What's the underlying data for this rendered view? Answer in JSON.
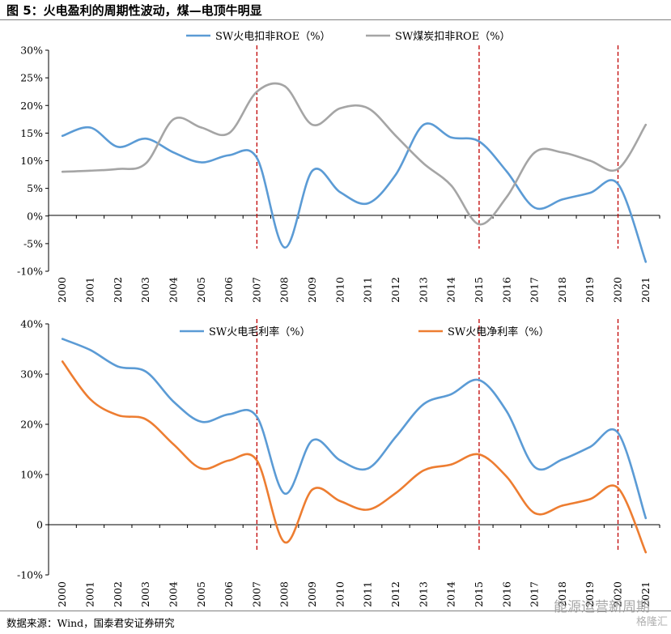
{
  "title": "图 5：火电盈利的周期性波动，煤—电顶牛明显",
  "source": "数据来源：Wind，国泰君安证券研究",
  "watermark": "能源运营新周期",
  "watermark_sub": "格隆汇",
  "chart_data": [
    {
      "type": "line",
      "x": [
        "2000",
        "2001",
        "2002",
        "2003",
        "2004",
        "2005",
        "2006",
        "2007",
        "2008",
        "2009",
        "2010",
        "2011",
        "2012",
        "2013",
        "2014",
        "2015",
        "2016",
        "2017",
        "2018",
        "2019",
        "2020",
        "2021"
      ],
      "ylim": [
        -10,
        30
      ],
      "yticks": [
        "30%",
        "25%",
        "20%",
        "15%",
        "10%",
        "5%",
        "0%",
        "-5%",
        "-10%"
      ],
      "ytick_values": [
        30,
        25,
        20,
        15,
        10,
        5,
        0,
        -5,
        -10
      ],
      "grid": false,
      "legend": "top",
      "reference_lines_at": [
        "2007",
        "2015",
        "2020"
      ],
      "series": [
        {
          "name": "SW火电扣非ROE（%）",
          "color": "#5b9bd5",
          "values": [
            14.5,
            16.0,
            12.5,
            14.0,
            11.5,
            9.7,
            11.0,
            10.5,
            -5.7,
            8.2,
            4.3,
            2.3,
            7.5,
            16.5,
            14.2,
            13.5,
            8.0,
            1.5,
            3.0,
            4.2,
            5.8,
            -8.3
          ]
        },
        {
          "name": "SW煤炭扣非ROE（%）",
          "color": "#a5a5a5",
          "values": [
            8.0,
            8.2,
            8.5,
            9.5,
            17.5,
            16.0,
            15.0,
            22.5,
            23.5,
            16.5,
            19.5,
            19.5,
            14.5,
            9.5,
            5.5,
            -1.5,
            3.5,
            11.5,
            11.5,
            10.0,
            8.5,
            16.5
          ]
        }
      ]
    },
    {
      "type": "line",
      "x": [
        "2000",
        "2001",
        "2002",
        "2003",
        "2004",
        "2005",
        "2006",
        "2007",
        "2008",
        "2009",
        "2010",
        "2011",
        "2012",
        "2013",
        "2014",
        "2015",
        "2016",
        "2017",
        "2018",
        "2019",
        "2020",
        "2021"
      ],
      "ylim": [
        -10,
        40
      ],
      "yticks": [
        "40%",
        "30%",
        "20%",
        "10%",
        "0",
        "-10%"
      ],
      "ytick_values": [
        40,
        30,
        20,
        10,
        0,
        -10
      ],
      "grid": false,
      "legend": "top",
      "reference_lines_at": [
        "2007",
        "2015",
        "2020"
      ],
      "series": [
        {
          "name": "SW火电毛利率（%）",
          "color": "#5b9bd5",
          "values": [
            37.0,
            34.8,
            31.5,
            30.5,
            24.5,
            20.5,
            22.0,
            21.5,
            6.2,
            16.8,
            12.8,
            11.2,
            17.5,
            24.0,
            26.0,
            28.8,
            22.5,
            11.5,
            13.0,
            15.5,
            18.3,
            1.3
          ]
        },
        {
          "name": "SW火电净利率（%）",
          "color": "#ed7d31",
          "values": [
            32.5,
            25.0,
            21.8,
            21.0,
            16.0,
            11.2,
            12.8,
            12.8,
            -3.5,
            7.0,
            4.7,
            3.0,
            6.3,
            10.8,
            12.0,
            14.0,
            9.5,
            2.3,
            3.8,
            5.1,
            7.3,
            -5.5
          ]
        }
      ]
    }
  ]
}
